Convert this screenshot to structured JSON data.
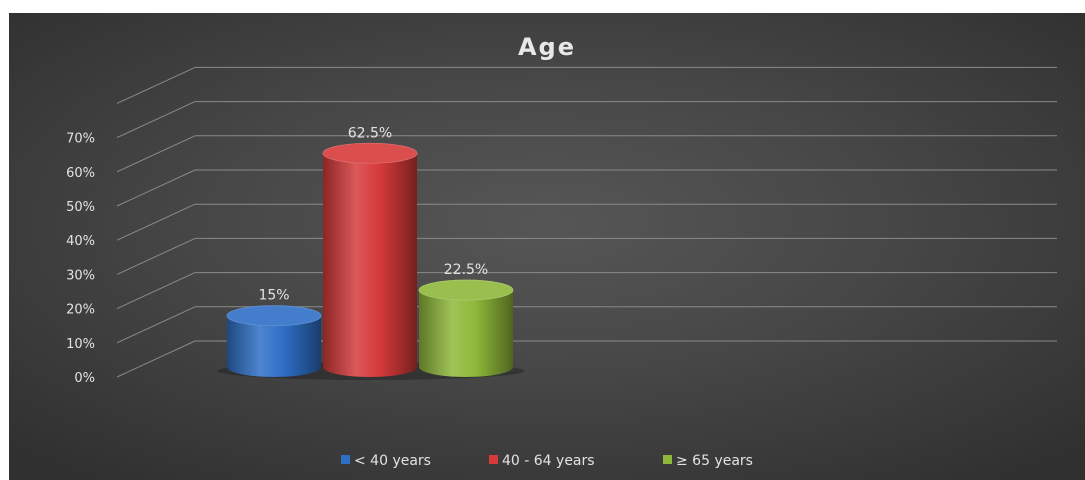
{
  "chart_data": {
    "type": "bar",
    "title": "Age",
    "categories": [
      "< 40 years",
      "40 - 64 years",
      "≥ 65 years"
    ],
    "values": [
      15,
      62.5,
      22.5
    ],
    "data_labels": [
      "15%",
      "62.5%",
      "22.5%"
    ],
    "ylim": [
      0,
      70
    ],
    "y_ticks": [
      "0%",
      "10%",
      "20%",
      "30%",
      "40%",
      "50%",
      "60%",
      "70%"
    ],
    "colors": [
      "#2e6fc6",
      "#d63a3a",
      "#8fb83a"
    ],
    "grid": true,
    "legend_position": "bottom",
    "style": "3d-cylinder"
  }
}
